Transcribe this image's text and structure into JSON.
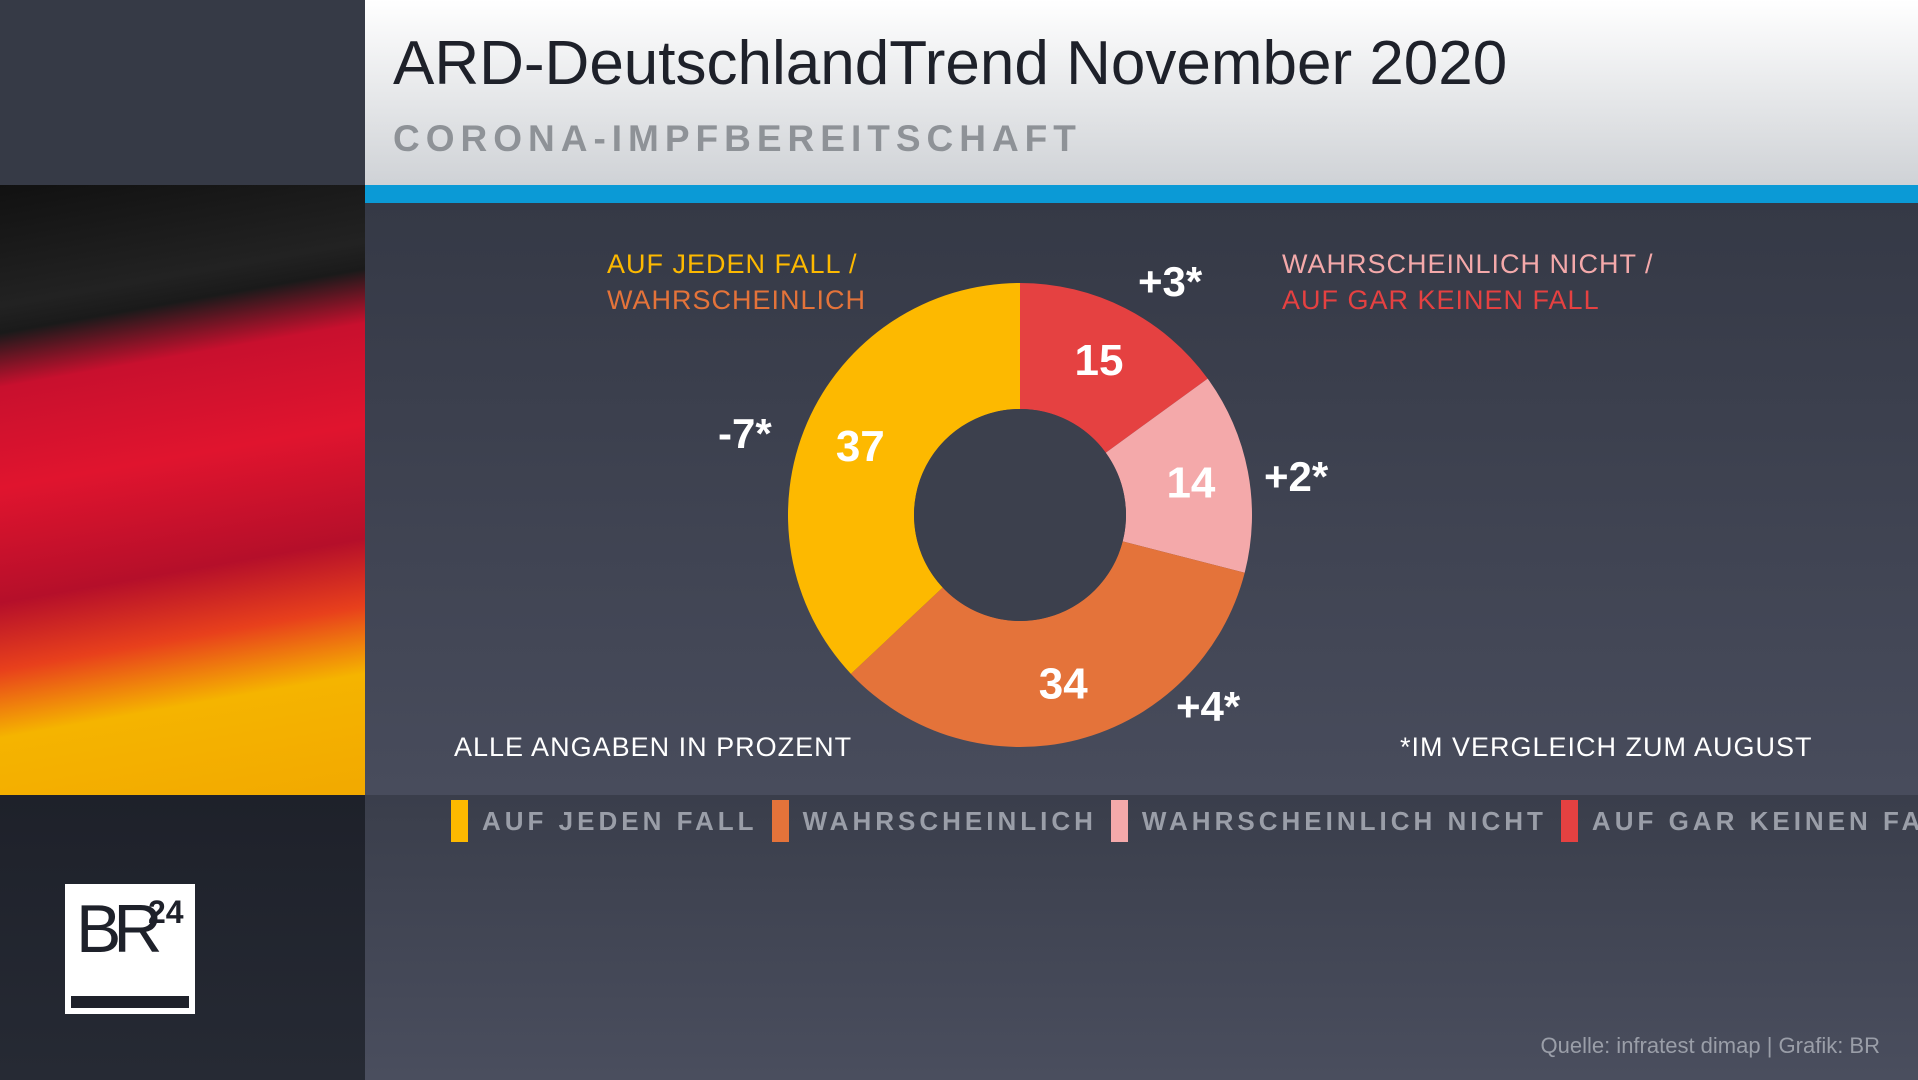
{
  "header": {
    "title": "ARD-DeutschlandTrend November 2020",
    "subtitle": "CORONA-IMPFBEREITSCHAFT"
  },
  "labels": {
    "left_line1": "AUF JEDEN FALL /",
    "left_line2": "WAHRSCHEINLICH",
    "right_line1": "WAHRSCHEINLICH NICHT /",
    "right_line2": "AUF GAR KEINEN FALL"
  },
  "notes": {
    "unit": "ALLE ANGABEN IN PROZENT",
    "comparison": "*IM VERGLEICH ZUM AUGUST"
  },
  "source": "Quelle: infratest dimap | Grafik: BR",
  "logo": {
    "text": "BR",
    "number": "24"
  },
  "colors": {
    "auf_jeden_fall": "#fdb900",
    "wahrscheinlich": "#e4733a",
    "wahrscheinlich_nicht": "#f4a9aa",
    "auf_gar_keinen_fall": "#e54141"
  },
  "chart_data": {
    "type": "pie",
    "donut": true,
    "title": "Corona-Impfbereitschaft",
    "unit": "%",
    "slices": [
      {
        "label": "AUF GAR KEINEN FALL",
        "value": 15,
        "value_label": "15",
        "change": "+3*",
        "color": "#e54141"
      },
      {
        "label": "WAHRSCHEINLICH NICHT",
        "value": 14,
        "value_label": "14",
        "change": "+2*",
        "color": "#f4a9aa"
      },
      {
        "label": "WAHRSCHEINLICH",
        "value": 34,
        "value_label": "34",
        "change": "+4*",
        "color": "#e4733a"
      },
      {
        "label": "AUF JEDEN FALL",
        "value": 37,
        "value_label": "37",
        "change": "-7*",
        "color": "#fdb900"
      }
    ],
    "legend_placement": "bottom"
  }
}
